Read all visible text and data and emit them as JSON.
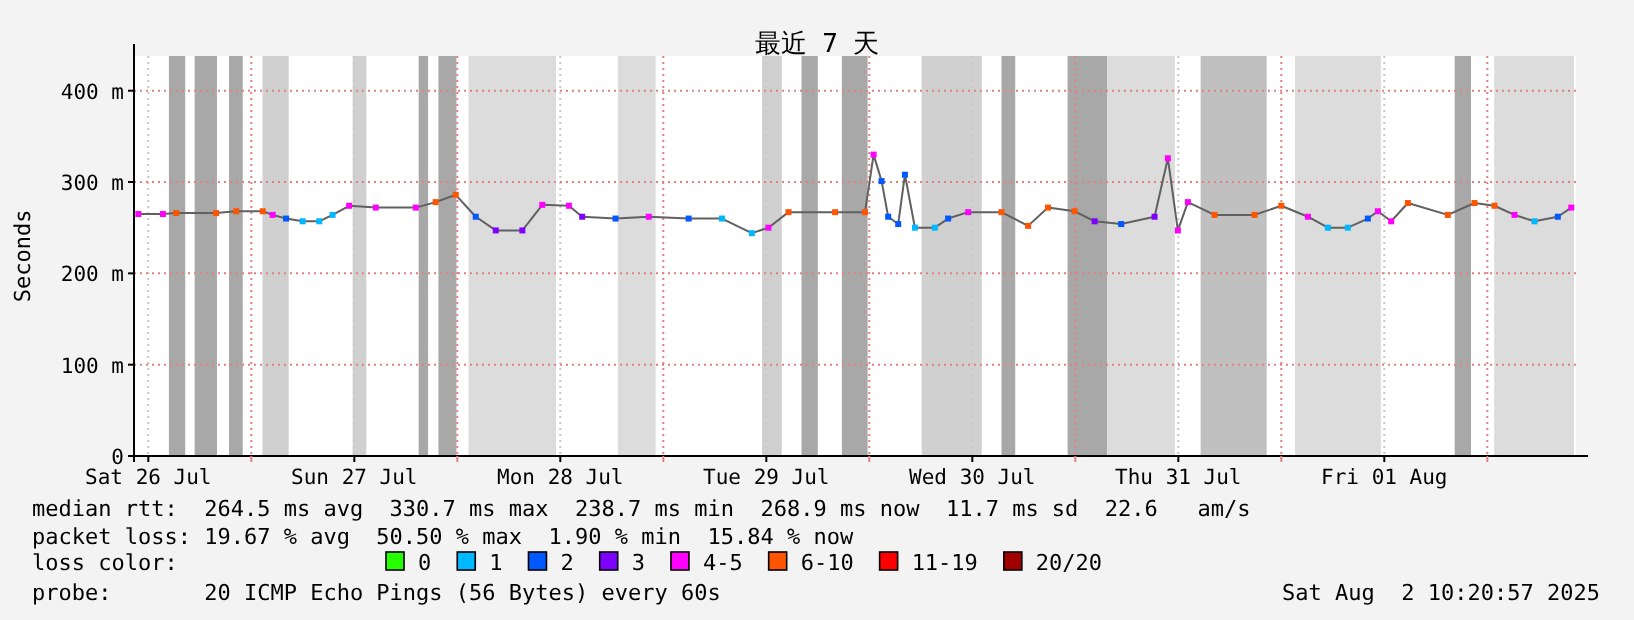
{
  "chart_data": {
    "type": "scatter",
    "title": "最近 7 天",
    "ylabel": "Seconds",
    "legend_title": "loss color:",
    "legend": "bottom",
    "marker": "square",
    "grid": true,
    "xlim": [
      "2025-07-26T10:20",
      "2025-08-02T10:20"
    ],
    "xticks": [
      {
        "value": "2025-07-26T12:00",
        "label": "Sat 26 Jul"
      },
      {
        "value": "2025-07-27T00:00",
        "label": null
      },
      {
        "value": "2025-07-27T12:00",
        "label": "Sun 27 Jul"
      },
      {
        "value": "2025-07-28T00:00",
        "label": null
      },
      {
        "value": "2025-07-28T12:00",
        "label": "Mon 28 Jul"
      },
      {
        "value": "2025-07-29T00:00",
        "label": null
      },
      {
        "value": "2025-07-29T12:00",
        "label": "Tue 29 Jul"
      },
      {
        "value": "2025-07-30T00:00",
        "label": null
      },
      {
        "value": "2025-07-30T12:00",
        "label": "Wed 30 Jul"
      },
      {
        "value": "2025-07-31T00:00",
        "label": null
      },
      {
        "value": "2025-07-31T12:00",
        "label": "Thu 31 Jul"
      },
      {
        "value": "2025-08-01T00:00",
        "label": null
      },
      {
        "value": "2025-08-01T12:00",
        "label": "Fri 01 Aug"
      },
      {
        "value": "2025-08-02T00:00",
        "label": null
      }
    ],
    "ylim": [
      0,
      438
    ],
    "yticks": [
      0,
      {
        "value": 100,
        "label": "100 m"
      },
      {
        "value": 200,
        "label": "200 m"
      },
      {
        "value": 300,
        "label": "300 m"
      },
      {
        "value": 400,
        "label": "400 m"
      }
    ],
    "bands": [
      {
        "axis": "x",
        "from": "2025-07-26T14:24",
        "to": "2025-07-26T16:18",
        "color": "#a8a8a8"
      },
      {
        "axis": "x",
        "from": "2025-07-26T17:24",
        "to": "2025-07-26T20:00",
        "color": "#a8a8a8"
      },
      {
        "axis": "x",
        "from": "2025-07-26T21:24",
        "to": "2025-07-26T23:00",
        "color": "#a8a8a8"
      },
      {
        "axis": "x",
        "from": "2025-07-27T01:18",
        "to": "2025-07-27T04:21",
        "color": "#d0d0d0"
      },
      {
        "axis": "x",
        "from": "2025-07-27T11:48",
        "to": "2025-07-27T13:24",
        "color": "#d0d0d0"
      },
      {
        "axis": "x",
        "from": "2025-07-27T19:30",
        "to": "2025-07-27T20:36",
        "color": "#a8a8a8"
      },
      {
        "axis": "x",
        "from": "2025-07-27T21:48",
        "to": "2025-07-27T23:54",
        "color": "#a8a8a8"
      },
      {
        "axis": "x",
        "from": "2025-07-28T01:18",
        "to": "2025-07-28T11:30",
        "color": "#dcdcdc"
      },
      {
        "axis": "x",
        "from": "2025-07-28T18:42",
        "to": "2025-07-28T23:06",
        "color": "#dcdcdc"
      },
      {
        "axis": "x",
        "from": "2025-07-29T11:30",
        "to": "2025-07-29T13:48",
        "color": "#d0d0d0"
      },
      {
        "axis": "x",
        "from": "2025-07-29T16:06",
        "to": "2025-07-29T18:00",
        "color": "#a8a8a8"
      },
      {
        "axis": "x",
        "from": "2025-07-29T20:48",
        "to": "2025-07-29T23:48",
        "color": "#a8a8a8"
      },
      {
        "axis": "x",
        "from": "2025-07-30T06:06",
        "to": "2025-07-30T13:06",
        "color": "#d0d0d0"
      },
      {
        "axis": "x",
        "from": "2025-07-30T15:24",
        "to": "2025-07-30T17:00",
        "color": "#a8a8a8"
      },
      {
        "axis": "x",
        "from": "2025-07-30T23:06",
        "to": "2025-07-31T03:42",
        "color": "#a8a8a8"
      },
      {
        "axis": "x",
        "from": "2025-07-31T03:42",
        "to": "2025-07-31T11:36",
        "color": "#dcdcdc"
      },
      {
        "axis": "x",
        "from": "2025-07-31T14:36",
        "to": "2025-07-31T22:18",
        "color": "#c0c0c0"
      },
      {
        "axis": "x",
        "from": "2025-08-01T01:36",
        "to": "2025-08-01T11:36",
        "color": "#dcdcdc"
      },
      {
        "axis": "x",
        "from": "2025-08-01T20:12",
        "to": "2025-08-01T22:06",
        "color": "#a8a8a8"
      },
      {
        "axis": "x",
        "from": "2025-08-02T00:48",
        "to": "2025-08-02T10:06",
        "color": "#dcdcdc"
      }
    ],
    "annotations": [
      "median rtt:  264.5 ms avg  330.7 ms max  238.7 ms min  268.9 ms now  11.7 ms sd  22.6   am/s",
      "packet loss: 19.67 % avg  50.50 % max  1.90 % min  15.84 % now",
      "probe:       20 ICMP Echo Pings (56 Bytes) every 60s",
      "Sat Aug  2 10:20:57 2025"
    ],
    "series": [
      {
        "type": "line",
        "marker": "none",
        "color": "#606060",
        "x": [
          "2025-07-26T10:50",
          "2025-07-26T13:42",
          "2025-07-26T15:15",
          "2025-07-26T19:54",
          "2025-07-26T22:14",
          "2025-07-27T01:20",
          "2025-07-27T02:29",
          "2025-07-27T04:03",
          "2025-07-27T05:59",
          "2025-07-27T07:55",
          "2025-07-27T09:28",
          "2025-07-27T11:24",
          "2025-07-27T14:30",
          "2025-07-27T19:10",
          "2025-07-27T21:29",
          "2025-07-27T23:49",
          "2025-07-28T02:09",
          "2025-07-28T04:29",
          "2025-07-28T07:35",
          "2025-07-28T09:54",
          "2025-07-28T13:00",
          "2025-07-28T14:33",
          "2025-07-28T18:26",
          "2025-07-28T22:18",
          "2025-07-29T02:57",
          "2025-07-29T06:50",
          "2025-07-29T10:19",
          "2025-07-29T12:15",
          "2025-07-29T14:35",
          "2025-07-29T20:01",
          "2025-07-29T23:30",
          "2025-07-30T00:30",
          "2025-07-30T01:26",
          "2025-07-30T02:12",
          "2025-07-30T03:22",
          "2025-07-30T04:09",
          "2025-07-30T05:19",
          "2025-07-30T07:38",
          "2025-07-30T09:11",
          "2025-07-30T11:31",
          "2025-07-30T15:24",
          "2025-07-30T18:30",
          "2025-07-30T20:49",
          "2025-07-30T23:55",
          "2025-07-31T02:15",
          "2025-07-31T05:21",
          "2025-07-31T09:14",
          "2025-07-31T10:47",
          "2025-07-31T11:57",
          "2025-07-31T13:07",
          "2025-07-31T16:13",
          "2025-07-31T20:53",
          "2025-08-01T00:00",
          "2025-08-01T03:06",
          "2025-08-01T05:26",
          "2025-08-01T07:45",
          "2025-08-01T10:05",
          "2025-08-01T11:15",
          "2025-08-01T12:48",
          "2025-08-01T14:45",
          "2025-08-01T19:24",
          "2025-08-01T22:30",
          "2025-08-02T00:50",
          "2025-08-02T03:10",
          "2025-08-02T05:30",
          "2025-08-02T08:13",
          "2025-08-02T09:47"
        ],
        "values": [
          265,
          265,
          266,
          266,
          268,
          268,
          264,
          260,
          257,
          257,
          264,
          274,
          272,
          272,
          278,
          286,
          262,
          247,
          247,
          275,
          274,
          262,
          260,
          262,
          260,
          260,
          244,
          250,
          267,
          267,
          267,
          330,
          301,
          262,
          254,
          308,
          250,
          250,
          260,
          267,
          267,
          252,
          272,
          268,
          257,
          254,
          262,
          326,
          247,
          278,
          264,
          264,
          274,
          262,
          250,
          250,
          260,
          268,
          257,
          277,
          264,
          277,
          274,
          264,
          257,
          262,
          272
        ]
      },
      {
        "name": "0",
        "color": "#26ff00"
      },
      {
        "name": "1",
        "color": "#00b8ff",
        "x": [
          "2025-07-27T05:59",
          "2025-07-27T07:55",
          "2025-07-27T09:28",
          "2025-07-29T06:50",
          "2025-07-29T10:19",
          "2025-07-30T05:19",
          "2025-07-30T07:38",
          "2025-08-01T05:26",
          "2025-08-01T07:45",
          "2025-08-02T05:30"
        ],
        "values": [
          257,
          257,
          264,
          260,
          244,
          250,
          250,
          250,
          250,
          257
        ]
      },
      {
        "name": "2",
        "color": "#0059ff",
        "x": [
          "2025-07-27T04:03",
          "2025-07-28T02:09",
          "2025-07-28T18:26",
          "2025-07-29T02:57",
          "2025-07-30T01:26",
          "2025-07-30T02:12",
          "2025-07-30T03:22",
          "2025-07-30T04:09",
          "2025-07-30T09:11",
          "2025-07-31T05:21",
          "2025-08-01T10:05",
          "2025-08-02T08:13"
        ],
        "values": [
          260,
          262,
          260,
          260,
          301,
          262,
          254,
          308,
          260,
          254,
          260,
          262
        ]
      },
      {
        "name": "3",
        "color": "#7e00ff",
        "x": [
          "2025-07-28T04:29",
          "2025-07-28T07:35",
          "2025-07-28T14:33",
          "2025-07-31T02:15",
          "2025-07-31T09:14"
        ],
        "values": [
          247,
          247,
          262,
          257,
          262
        ]
      },
      {
        "name": "4-5",
        "color": "#ff00ff",
        "x": [
          "2025-07-26T10:50",
          "2025-07-26T13:42",
          "2025-07-27T02:29",
          "2025-07-27T11:24",
          "2025-07-27T14:30",
          "2025-07-27T19:10",
          "2025-07-28T09:54",
          "2025-07-28T13:00",
          "2025-07-28T22:18",
          "2025-07-29T12:15",
          "2025-07-30T00:30",
          "2025-07-30T11:31",
          "2025-07-31T10:47",
          "2025-07-31T11:57",
          "2025-07-31T13:07",
          "2025-08-01T03:06",
          "2025-08-01T11:15",
          "2025-08-01T12:48",
          "2025-08-02T03:10",
          "2025-08-02T09:47"
        ],
        "values": [
          265,
          265,
          264,
          274,
          272,
          272,
          275,
          274,
          262,
          250,
          330,
          267,
          326,
          247,
          278,
          262,
          268,
          257,
          264,
          272
        ]
      },
      {
        "name": "6-10",
        "color": "#ff5500",
        "x": [
          "2025-07-26T15:15",
          "2025-07-26T19:54",
          "2025-07-26T22:14",
          "2025-07-27T01:20",
          "2025-07-27T21:29",
          "2025-07-27T23:49",
          "2025-07-29T14:35",
          "2025-07-29T20:01",
          "2025-07-29T23:30",
          "2025-07-30T15:24",
          "2025-07-30T18:30",
          "2025-07-30T20:49",
          "2025-07-30T23:55",
          "2025-07-31T16:13",
          "2025-07-31T20:53",
          "2025-08-01T00:00",
          "2025-08-01T14:45",
          "2025-08-01T19:24",
          "2025-08-01T22:30",
          "2025-08-02T00:50"
        ],
        "values": [
          266,
          266,
          268,
          268,
          278,
          286,
          267,
          267,
          267,
          267,
          252,
          272,
          268,
          264,
          264,
          274,
          277,
          264,
          277,
          274
        ]
      },
      {
        "name": "11-19",
        "color": "#ff0000"
      },
      {
        "name": "20/20",
        "color": "#a10000"
      }
    ]
  }
}
